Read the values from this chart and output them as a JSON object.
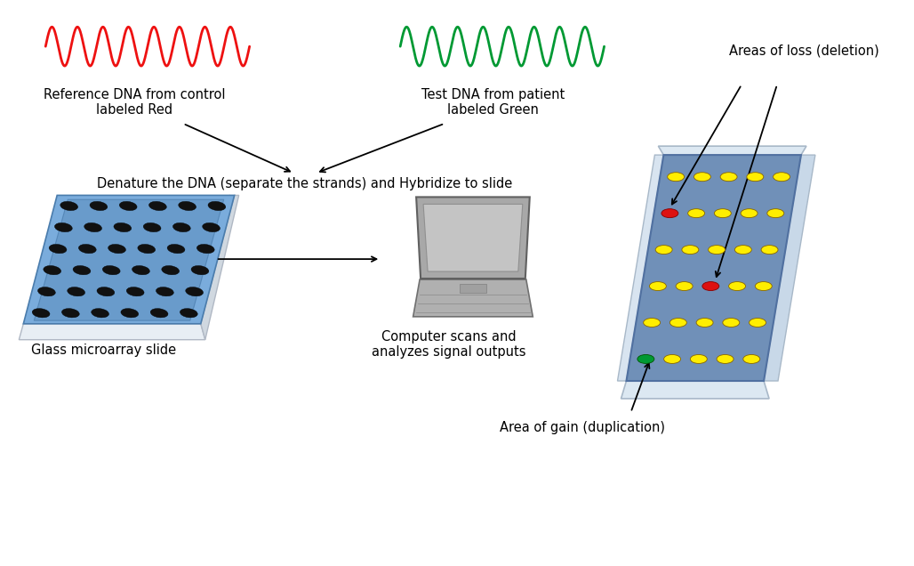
{
  "bg_color": "#ffffff",
  "red_wave_color": "#ee1111",
  "green_wave_color": "#009933",
  "text_color": "#000000",
  "label_ref": "Reference DNA from control\nlabeled Red",
  "label_test": "Test DNA from patient\nlabeled Green",
  "label_denature": "Denature the DNA (separate the strands) and Hybridize to slide",
  "label_glass": "Glass microarray slide",
  "label_computer": "Computer scans and\nanalyzes signal outputs",
  "label_loss": "Areas of loss (deletion)",
  "label_gain": "Area of gain (duplication)",
  "dot_black": "#111111",
  "dot_yellow": "#ffee00",
  "dot_red": "#dd1111",
  "dot_green": "#009933"
}
